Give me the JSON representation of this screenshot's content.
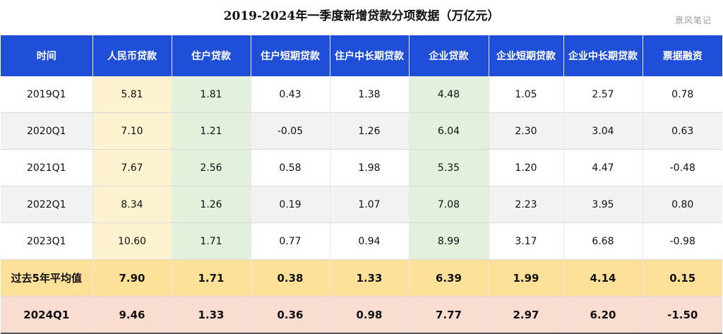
{
  "title": "2019-2024年一季度新增贷款分项数据（万亿元）",
  "watermark": "禀风笔记",
  "chart_data": {
    "type": "table",
    "columns": [
      "时间",
      "人民币贷款",
      "住户贷款",
      "住户短期贷款",
      "住户中长期贷款",
      "企业贷款",
      "企业短期贷款",
      "企业中长期贷款",
      "票据融资"
    ],
    "rows": [
      {
        "label": "2019Q1",
        "values": [
          "5.81",
          "1.81",
          "0.43",
          "1.38",
          "4.48",
          "1.05",
          "2.57",
          "0.78"
        ]
      },
      {
        "label": "2020Q1",
        "values": [
          "7.10",
          "1.21",
          "-0.05",
          "1.26",
          "6.04",
          "2.30",
          "3.04",
          "0.63"
        ]
      },
      {
        "label": "2021Q1",
        "values": [
          "7.67",
          "2.56",
          "0.58",
          "1.98",
          "5.35",
          "1.20",
          "4.47",
          "-0.48"
        ]
      },
      {
        "label": "2022Q1",
        "values": [
          "8.34",
          "1.26",
          "0.19",
          "1.07",
          "7.08",
          "2.23",
          "3.95",
          "0.80"
        ]
      },
      {
        "label": "2023Q1",
        "values": [
          "10.60",
          "1.71",
          "0.77",
          "0.94",
          "8.99",
          "3.17",
          "6.68",
          "-0.98"
        ]
      },
      {
        "label": "过去5年平均值",
        "values": [
          "7.90",
          "1.71",
          "0.38",
          "1.33",
          "6.39",
          "1.99",
          "4.14",
          "0.15"
        ]
      },
      {
        "label": "2024Q1",
        "values": [
          "9.46",
          "1.33",
          "0.36",
          "0.98",
          "7.77",
          "2.97",
          "6.20",
          "-1.50"
        ]
      }
    ]
  },
  "colors": {
    "header": "#1f4fd8",
    "rmb_column": "#fdf2cf",
    "highlight_columns": "#e3f0dc",
    "average_row": "#fde199",
    "current_row": "#f9ddd0"
  }
}
